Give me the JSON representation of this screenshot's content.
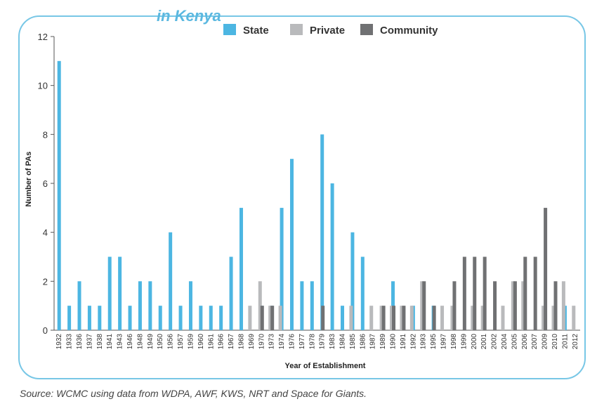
{
  "header": {
    "partial_title": "in Kenya"
  },
  "source_note": "Source: WCMC using data from WDPA, AWF, KWS, NRT and Space for Giants.",
  "colors": {
    "state": "#4cb6e2",
    "private": "#b9babc",
    "community": "#707173",
    "frame": "#78c7e6"
  },
  "chart_data": {
    "type": "bar",
    "xlabel": "Year of Establishment",
    "ylabel": "Number of PAs",
    "ylim": [
      0,
      12
    ],
    "yticks": [
      0,
      2,
      4,
      6,
      8,
      10,
      12
    ],
    "grid": false,
    "legend_position": "top",
    "categories": [
      "1932",
      "1933",
      "1936",
      "1937",
      "1938",
      "1941",
      "1943",
      "1946",
      "1948",
      "1949",
      "1950",
      "1956",
      "1957",
      "1959",
      "1960",
      "1961",
      "1966",
      "1967",
      "1968",
      "1969",
      "1970",
      "1973",
      "1974",
      "1976",
      "1977",
      "1978",
      "1979",
      "1983",
      "1984",
      "1985",
      "1986",
      "1987",
      "1989",
      "1990",
      "1991",
      "1992",
      "1993",
      "1995",
      "1997",
      "1998",
      "1999",
      "2000",
      "2001",
      "2002",
      "2004",
      "2005",
      "2006",
      "2007",
      "2009",
      "2010",
      "2011",
      "2012"
    ],
    "series": [
      {
        "name": "State",
        "values": [
          11,
          1,
          2,
          1,
          1,
          3,
          3,
          1,
          2,
          2,
          1,
          4,
          1,
          2,
          1,
          1,
          1,
          3,
          5,
          0,
          1,
          1,
          5,
          7,
          2,
          2,
          8,
          6,
          1,
          4,
          3,
          0,
          0,
          2,
          0,
          1,
          1,
          1,
          0,
          0,
          0,
          0,
          0,
          0,
          0,
          1,
          0,
          0,
          0,
          0,
          1,
          0
        ]
      },
      {
        "name": "Private",
        "values": [
          0,
          0,
          0,
          0,
          0,
          0,
          0,
          0,
          0,
          0,
          0,
          0,
          0,
          0,
          0,
          0,
          0,
          0,
          0,
          1,
          2,
          1,
          1,
          0,
          0,
          0,
          0,
          0,
          0,
          1,
          0,
          1,
          1,
          1,
          1,
          1,
          2,
          0,
          1,
          1,
          0,
          1,
          1,
          0,
          1,
          2,
          2,
          0,
          1,
          1,
          2,
          1
        ]
      },
      {
        "name": "Community",
        "values": [
          0,
          0,
          0,
          0,
          0,
          0,
          0,
          0,
          0,
          0,
          0,
          0,
          0,
          0,
          0,
          0,
          0,
          0,
          0,
          0,
          1,
          1,
          0,
          0,
          0,
          0,
          1,
          0,
          0,
          0,
          0,
          0,
          1,
          1,
          1,
          0,
          2,
          1,
          0,
          2,
          3,
          3,
          3,
          2,
          0,
          2,
          3,
          3,
          5,
          2,
          0,
          0
        ]
      }
    ]
  }
}
